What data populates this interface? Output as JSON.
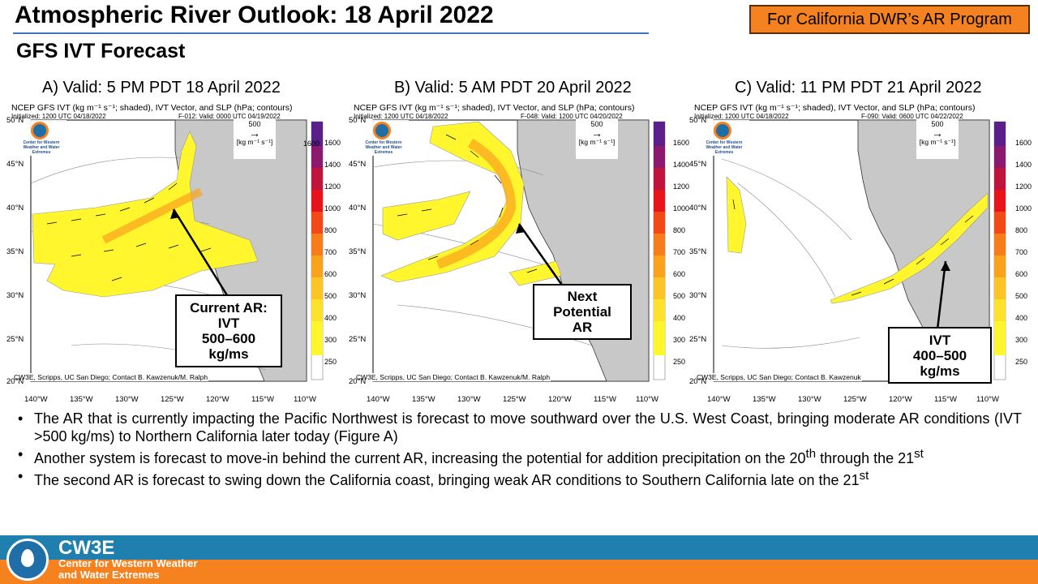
{
  "header": {
    "title": "Atmospheric River Outlook: 18 April 2022",
    "subtitle": "GFS IVT Forecast",
    "program_badge": "For California DWR’s AR Program"
  },
  "panels": [
    {
      "label": "A) Valid:  5 PM PDT 18 April 2022",
      "header_line": "NCEP GFS IVT (kg m⁻¹ s⁻¹; shaded), IVT Vector, and SLP (hPa; contours)",
      "init": "Initialized: 1200 UTC 04/18/2022",
      "valid": "F-012: Valid: 0000 UTC 04/19/2022",
      "credit": "CW3E, Scripps, UC San Diego; Contact B. Kawzenuk/M. Ralph"
    },
    {
      "label": "B) Valid:  5 AM PDT 20 April 2022",
      "header_line": "NCEP GFS IVT (kg m⁻¹ s⁻¹; shaded), IVT Vector, and SLP (hPa; contours)",
      "init": "Initialized: 1200 UTC 04/18/2022",
      "valid": "F-048: Valid: 1200 UTC 04/20/2022",
      "credit": "CW3E, Scripps, UC San Diego; Contact B. Kawzenuk/M. Ralph"
    },
    {
      "label": "C) Valid:  11 PM PDT 21 April 2022",
      "header_line": "NCEP GFS IVT (kg m⁻¹ s⁻¹; shaded), IVT Vector, and SLP (hPa; contours)",
      "init": "Initialized: 1200 UTC 04/18/2022",
      "valid": "F-090: Valid: 0600 UTC 04/22/2022",
      "credit": "CW3E, Scripps, UC San Diego; Contact B. Kawzenuk"
    }
  ],
  "map_axes": {
    "lat_labels": [
      "50°N",
      "45°N",
      "40°N",
      "35°N",
      "30°N",
      "25°N",
      "20°N"
    ],
    "lon_labels": [
      "140°W",
      "135°W",
      "130°W",
      "125°W",
      "120°W",
      "115°W",
      "110°W"
    ]
  },
  "reference_vector": {
    "value": "500",
    "unit": "[kg m⁻¹ s⁻¹]"
  },
  "colorbar": {
    "levels": [
      "1600",
      "1400",
      "1200",
      "1000",
      "800",
      "700",
      "600",
      "500",
      "400",
      "300",
      "250"
    ],
    "colors": [
      "#5b1f8a",
      "#8b1a6e",
      "#c0143c",
      "#e8141c",
      "#f24a17",
      "#f77d1a",
      "#f9a21d",
      "#fbc526",
      "#fde12c",
      "#fff62e",
      "#ffffff"
    ]
  },
  "logo_text": "Center for Western Weather and Water Extremes",
  "callouts": {
    "current_ar": [
      "Current AR:",
      "IVT",
      "500–600",
      "kg/ms"
    ],
    "next_ar": [
      "Next",
      "Potential",
      "AR"
    ],
    "ivt_c": [
      "IVT",
      "400–500",
      "kg/ms"
    ]
  },
  "bullets": [
    {
      "text": "The AR that is currently impacting the Pacific Northwest is forecast to move southward over the U.S. West Coast, bringing moderate AR conditions (IVT >500 kg/ms) to Northern California later today (Figure A)",
      "sup": "",
      "tail": ""
    },
    {
      "text": "Another system is forecast to move-in behind the current AR, increasing the potential for addition precipitation on the 20",
      "sup": "th",
      "tail": " through the 21",
      "sup2": "st"
    },
    {
      "text": "The second AR is forecast to swing down the California coast, bringing weak AR conditions to Southern California late on the 21",
      "sup": "st",
      "tail": ""
    }
  ],
  "footer": {
    "name": "CW3E",
    "sub_line1": "Center for Western Weather",
    "sub_line2": "and Water Extremes"
  }
}
